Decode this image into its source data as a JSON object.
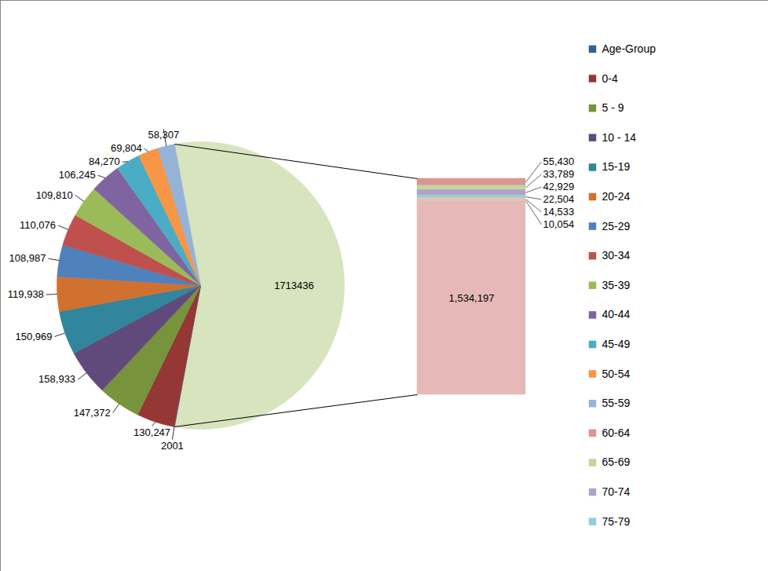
{
  "chart_data": {
    "type": "pie",
    "legend": "right",
    "data_labels": true,
    "pie": {
      "categories": [
        "Age-Group",
        "0-4",
        "5 - 9",
        "10 - 14",
        "15-19",
        "20-24",
        "25-29",
        "30-34",
        "35-39",
        "40-44",
        "45-49",
        "50-54",
        "55-59"
      ],
      "values": [
        2001,
        130247,
        147372,
        158933,
        150969,
        119938,
        108987,
        110076,
        109810,
        106245,
        84270,
        69804,
        58307
      ],
      "value_labels": [
        "2001",
        "130,247",
        "147,372",
        "158,933",
        "150,969",
        "119,938",
        "108,987",
        "110,076",
        "109,810",
        "106,245",
        "84,270",
        "69,804",
        "58,307"
      ],
      "colors": [
        "#376092",
        "#953735",
        "#77933C",
        "#604A7B",
        "#31859C",
        "#D1712F",
        "#4F81BD",
        "#C0504D",
        "#9BBB59",
        "#8064A2",
        "#4BACC6",
        "#F79646",
        "#95B3D7"
      ]
    },
    "other_value": 1713436,
    "other_color": "#D7E4BD",
    "bar": {
      "categories": [
        "60-64",
        "65-69",
        "70-74",
        "75-79",
        null,
        null,
        null
      ],
      "values": [
        55430,
        33789,
        42929,
        22504,
        14533,
        10054,
        1534197
      ],
      "value_labels": [
        "55,430",
        "33,789",
        "42,929",
        "22,504",
        "14,533",
        "10,054",
        "1,534,197"
      ],
      "colors": [
        "#D99694",
        "#C3D69B",
        "#B3A2C7",
        "#93CDDD",
        "#FAC090",
        "#B9CDE5",
        "#E6B9B8"
      ]
    }
  }
}
